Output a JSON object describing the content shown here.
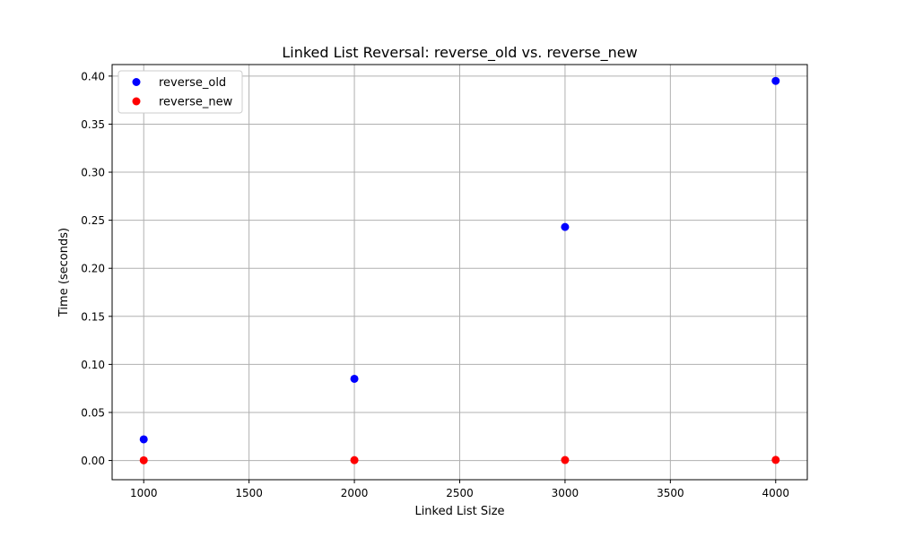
{
  "chart_data": {
    "type": "scatter",
    "title": "Linked List Reversal: reverse_old vs. reverse_new",
    "xlabel": "Linked List Size",
    "ylabel": "Time (seconds)",
    "xlim": [
      850,
      4150
    ],
    "ylim": [
      -0.02,
      0.412
    ],
    "xticks": [
      1000,
      1500,
      2000,
      2500,
      3000,
      3500,
      4000
    ],
    "yticks": [
      0.0,
      0.05,
      0.1,
      0.15,
      0.2,
      0.25,
      0.3,
      0.35,
      0.4
    ],
    "xtick_labels": [
      "1000",
      "1500",
      "2000",
      "2500",
      "3000",
      "3500",
      "4000"
    ],
    "ytick_labels": [
      "0.00",
      "0.05",
      "0.10",
      "0.15",
      "0.20",
      "0.25",
      "0.30",
      "0.35",
      "0.40"
    ],
    "grid": true,
    "legend_position": "top-left",
    "series": [
      {
        "name": "reverse_old",
        "color": "#0000ff",
        "x": [
          1000,
          2000,
          3000,
          4000
        ],
        "y": [
          0.022,
          0.085,
          0.243,
          0.395
        ]
      },
      {
        "name": "reverse_new",
        "color": "#ff0000",
        "x": [
          1000,
          2000,
          3000,
          4000
        ],
        "y": [
          0.0002,
          0.0004,
          0.0005,
          0.0006
        ]
      }
    ]
  }
}
